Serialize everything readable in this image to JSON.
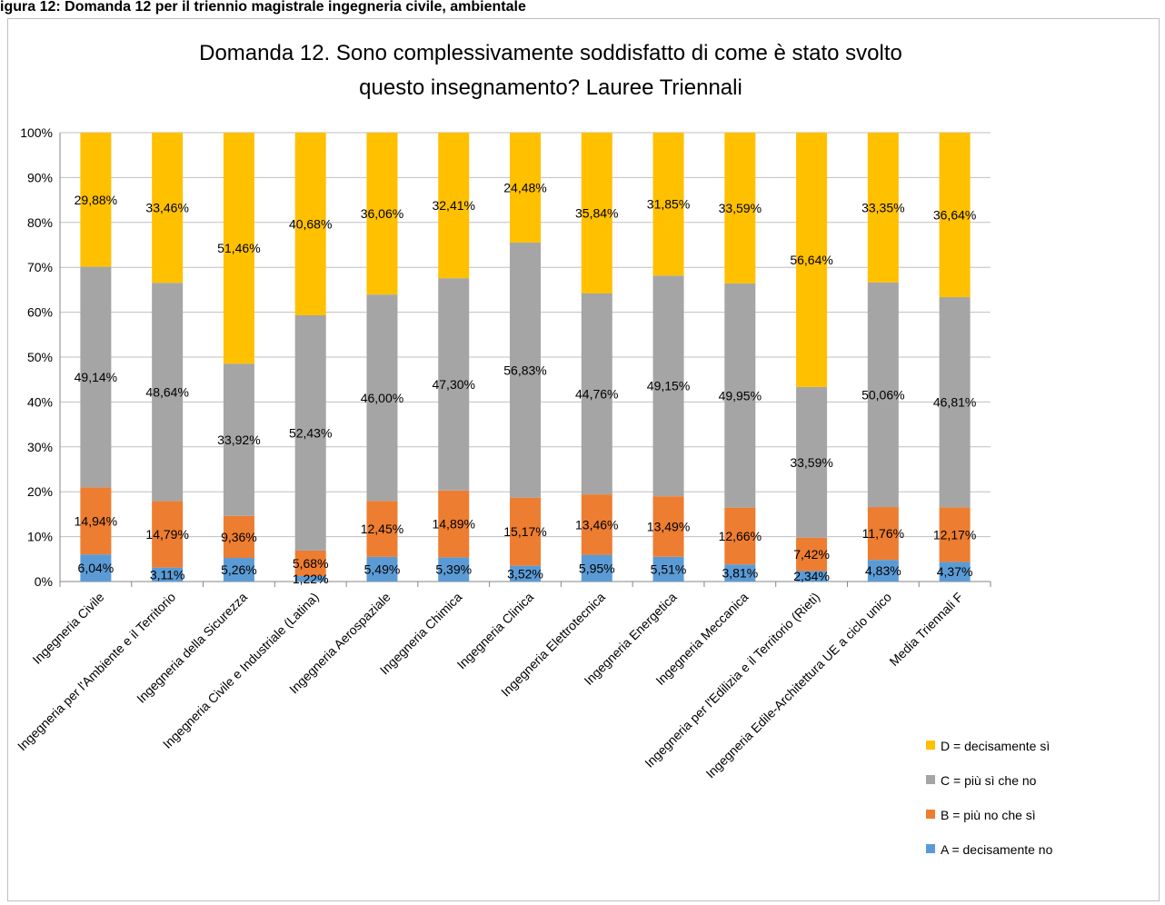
{
  "caption": "igura 12: Domanda 12 per il triennio magistrale ingegneria civile, ambientale",
  "chart_data": {
    "type": "bar",
    "stacked": true,
    "percent": true,
    "title_lines": [
      "Domanda 12. Sono complessivamente soddisfatto di come è stato svolto",
      "questo insegnamento? Lauree Triennali"
    ],
    "ylim": [
      0,
      100
    ],
    "yticks": [
      "0%",
      "10%",
      "20%",
      "30%",
      "40%",
      "50%",
      "60%",
      "70%",
      "80%",
      "90%",
      "100%"
    ],
    "categories": [
      "Ingegneria Civile",
      "Ingegneria per l'Ambiente e il Territorio",
      "Ingegneria della Sicurezza",
      "Ingegneria Civile e Industriale (Latina)",
      "Ingegneria Aerospaziale",
      "Ingegneria Chimica",
      "Ingegneria Clinica",
      "Ingegneria Elettrotecnica",
      "Ingegneria Energetica",
      "Ingegneria Meccanica",
      "Ingegneria per l'Edilizia e il Territorio (Rieti)",
      "Ingegneria Edile-Architettura UE a ciclo unico",
      "Media Triennali F"
    ],
    "series": [
      {
        "name": "A = decisamente no",
        "color": "#5b9bd5",
        "values": [
          6.04,
          3.11,
          5.26,
          1.22,
          5.49,
          5.39,
          3.52,
          5.95,
          5.51,
          3.81,
          2.34,
          4.83,
          4.37
        ],
        "labels": [
          "6,04%",
          "3,11%",
          "5,26%",
          "1,22%",
          "5,49%",
          "5,39%",
          "3,52%",
          "5,95%",
          "5,51%",
          "3,81%",
          "2,34%",
          "4,83%",
          "4,37%"
        ]
      },
      {
        "name": "B = più no che sì",
        "color": "#ed7d31",
        "values": [
          14.94,
          14.79,
          9.36,
          5.68,
          12.45,
          14.89,
          15.17,
          13.46,
          13.49,
          12.66,
          7.42,
          11.76,
          12.17
        ],
        "labels": [
          "14,94%",
          "14,79%",
          "9,36%",
          "5,68%",
          "12,45%",
          "14,89%",
          "15,17%",
          "13,46%",
          "13,49%",
          "12,66%",
          "7,42%",
          "11,76%",
          "12,17%"
        ]
      },
      {
        "name": "C = più sì che no",
        "color": "#a5a5a5",
        "values": [
          49.14,
          48.64,
          33.92,
          52.43,
          46.0,
          47.3,
          56.83,
          44.76,
          49.15,
          49.95,
          33.59,
          50.06,
          46.81
        ],
        "labels": [
          "49,14%",
          "48,64%",
          "33,92%",
          "52,43%",
          "46,00%",
          "47,30%",
          "56,83%",
          "44,76%",
          "49,15%",
          "49,95%",
          "33,59%",
          "50,06%",
          "46,81%"
        ]
      },
      {
        "name": "D = decisamente sì",
        "color": "#ffc000",
        "values": [
          29.88,
          33.46,
          51.46,
          40.68,
          36.06,
          32.41,
          24.48,
          35.84,
          31.85,
          33.59,
          56.64,
          33.35,
          36.64
        ],
        "labels": [
          "29,88%",
          "33,46%",
          "51,46%",
          "40,68%",
          "36,06%",
          "32,41%",
          "24,48%",
          "35,84%",
          "31,85%",
          "33,59%",
          "56,64%",
          "33,35%",
          "36,64%"
        ]
      }
    ],
    "legend_position": "right",
    "grid": true
  }
}
